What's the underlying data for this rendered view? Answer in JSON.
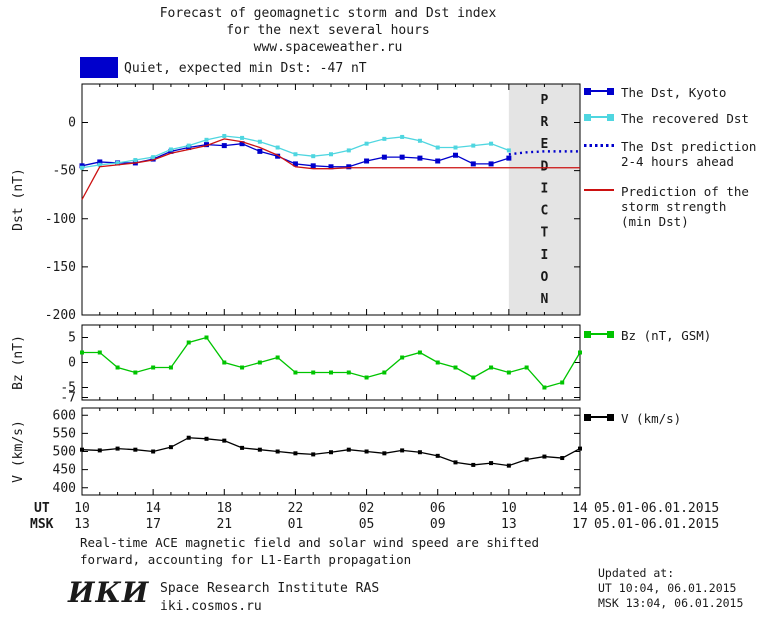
{
  "title": {
    "line1": "Forecast of geomagnetic storm and Dst index",
    "line2": "for the next several hours",
    "line3": "www.spaceweather.ru"
  },
  "status": {
    "label": "Quiet, expected min Dst: -47 nT",
    "swatch_color": "#0000cc"
  },
  "legend": {
    "dst_kyoto": "The Dst, Kyoto",
    "recovered": "The recovered Dst",
    "prediction_line1": "The Dst prediction",
    "prediction_line2": "2-4 hours ahead",
    "storm_line1": "Prediction of the",
    "storm_line2": "storm strength",
    "storm_line3": "(min Dst)",
    "bz": "Bz (nT, GSM)",
    "v": "V (km/s)"
  },
  "axes": {
    "ut_label": "UT",
    "msk_label": "MSK",
    "ut_ticks": [
      "10",
      "14",
      "18",
      "22",
      "02",
      "06",
      "10",
      "14"
    ],
    "msk_ticks": [
      "13",
      "17",
      "21",
      "01",
      "05",
      "09",
      "13",
      "17"
    ],
    "date_range_ut": "05.01-06.01.2015",
    "date_range_msk": "05.01-06.01.2015",
    "prediction_band_label": "PREDICTION"
  },
  "footer": {
    "note_line1": "Real-time ACE magnetic field and solar wind speed are shifted",
    "note_line2": "forward, accounting for L1-Earth propagation",
    "updated_label": "Updated at:",
    "updated_ut": "UT  10:04, 06.01.2015",
    "updated_msk": "MSK 13:04, 06.01.2015",
    "logo": "ИКИ",
    "institute": "Space Research Institute RAS",
    "site": "iki.cosmos.ru"
  },
  "chart_data": [
    {
      "type": "line",
      "title": "Dst index forecast",
      "ylabel": "Dst (nT)",
      "ylim": [
        -200,
        40
      ],
      "yticks": [
        0,
        -50,
        -100,
        -150,
        -200
      ],
      "xlim_hours": [
        0,
        28
      ],
      "x_axis_note": "hours UT from 10:00 05.01.2015 to 14:00 06.01.2015",
      "prediction_band": [
        24,
        28
      ],
      "series": [
        {
          "name": "The Dst, Kyoto",
          "color": "#0000cc",
          "style": "line",
          "markers": true,
          "marker_size": 5,
          "x": [
            0,
            1,
            2,
            3,
            4,
            5,
            6,
            7,
            8,
            9,
            10,
            11,
            12,
            13,
            14,
            15,
            16,
            17,
            18,
            19,
            20,
            21,
            22,
            23,
            24
          ],
          "values": [
            -45,
            -41,
            -42,
            -42,
            -38,
            -30,
            -26,
            -23,
            -24,
            -22,
            -30,
            -35,
            -43,
            -45,
            -46,
            -46,
            -40,
            -36,
            -36,
            -37,
            -40,
            -34,
            -43,
            -43,
            -37
          ]
        },
        {
          "name": "The recovered Dst",
          "color": "#4fd6e0",
          "style": "line",
          "markers": true,
          "marker_size": 4,
          "x": [
            0,
            1,
            2,
            3,
            4,
            5,
            6,
            7,
            8,
            9,
            10,
            11,
            12,
            13,
            14,
            15,
            16,
            17,
            18,
            19,
            20,
            21,
            22,
            23,
            24
          ],
          "values": [
            -47,
            -44,
            -42,
            -39,
            -36,
            -28,
            -24,
            -18,
            -14,
            -16,
            -20,
            -26,
            -33,
            -35,
            -33,
            -29,
            -22,
            -17,
            -15,
            -19,
            -26,
            -26,
            -24,
            -22,
            -29
          ]
        },
        {
          "name": "The Dst prediction 2-4 hours ahead",
          "color": "#0000cc",
          "style": "dotted",
          "markers": false,
          "x": [
            24,
            25,
            26,
            27,
            28
          ],
          "values": [
            -33,
            -31,
            -30,
            -30,
            -30
          ]
        },
        {
          "name": "Prediction of the storm strength (min Dst)",
          "color": "#cc1111",
          "style": "line",
          "markers": false,
          "x": [
            0,
            1,
            2,
            3,
            4,
            5,
            6,
            7,
            8,
            9,
            10,
            11,
            12,
            13,
            14,
            15,
            16,
            17,
            18,
            19,
            20,
            21,
            22,
            23,
            24,
            25,
            26,
            27,
            28
          ],
          "values": [
            -80,
            -46,
            -44,
            -42,
            -39,
            -32,
            -28,
            -24,
            -17,
            -20,
            -26,
            -34,
            -46,
            -48,
            -48,
            -47,
            -47,
            -47,
            -47,
            -47,
            -47,
            -47,
            -47,
            -47,
            -47,
            -47,
            -47,
            -47,
            -47
          ]
        }
      ]
    },
    {
      "type": "line",
      "title": "Bz component",
      "ylabel": "Bz (nT)",
      "ylim": [
        -7.5,
        7.5
      ],
      "yticks": [
        5,
        0,
        -5,
        -7
      ],
      "xlim_hours": [
        0,
        28
      ],
      "series": [
        {
          "name": "Bz (nT, GSM)",
          "color": "#00c400",
          "style": "line",
          "markers": true,
          "marker_size": 4,
          "x": [
            0,
            1,
            2,
            3,
            4,
            5,
            6,
            7,
            8,
            9,
            10,
            11,
            12,
            13,
            14,
            15,
            16,
            17,
            18,
            19,
            20,
            21,
            22,
            23,
            24,
            25,
            26,
            27,
            28
          ],
          "values": [
            2,
            2,
            -1,
            -2,
            -1,
            -1,
            4,
            5,
            0,
            -1,
            0,
            1,
            -2,
            -2,
            -2,
            -2,
            -3,
            -2,
            1,
            2,
            0,
            -1,
            -3,
            -1,
            -2,
            -1,
            -5,
            -4,
            2
          ]
        }
      ]
    },
    {
      "type": "line",
      "title": "Solar wind speed",
      "ylabel": "V (km/s)",
      "ylim": [
        380,
        620
      ],
      "yticks": [
        600,
        550,
        500,
        450,
        400
      ],
      "xlim_hours": [
        0,
        28
      ],
      "series": [
        {
          "name": "V (km/s)",
          "color": "#000000",
          "style": "line",
          "markers": true,
          "marker_size": 4,
          "x": [
            0,
            1,
            2,
            3,
            4,
            5,
            6,
            7,
            8,
            9,
            10,
            11,
            12,
            13,
            14,
            15,
            16,
            17,
            18,
            19,
            20,
            21,
            22,
            23,
            24,
            25,
            26,
            27,
            28
          ],
          "values": [
            505,
            503,
            508,
            505,
            500,
            512,
            538,
            535,
            530,
            510,
            505,
            500,
            495,
            492,
            498,
            505,
            500,
            495,
            503,
            498,
            488,
            470,
            463,
            468,
            461,
            478,
            486,
            482,
            508
          ]
        }
      ]
    }
  ]
}
